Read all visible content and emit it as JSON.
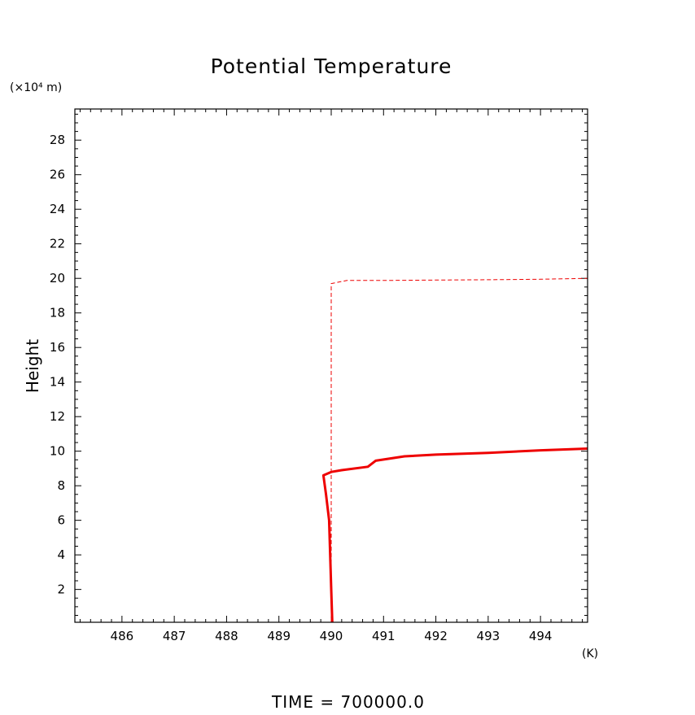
{
  "chart_data": {
    "type": "line",
    "title": "Potential Temperature",
    "ylabel": "Height",
    "y_unit_label": "(×10⁴ m)",
    "x_unit_label": "(K)",
    "footer": "TIME = 700000.0",
    "xlim": [
      485.1,
      494.9
    ],
    "ylim": [
      0.1,
      29.8
    ],
    "x_ticks": [
      486,
      487,
      488,
      489,
      490,
      491,
      492,
      493,
      494
    ],
    "y_ticks": [
      2,
      4,
      6,
      8,
      10,
      12,
      14,
      16,
      18,
      20,
      22,
      24,
      26,
      28
    ],
    "grid": false,
    "series": [
      {
        "style": "solid",
        "color": "#ee0000",
        "points": [
          [
            490.02,
            0.1
          ],
          [
            490.0,
            2.0
          ],
          [
            489.98,
            4.0
          ],
          [
            489.96,
            6.0
          ],
          [
            489.9,
            7.5
          ],
          [
            489.85,
            8.6
          ],
          [
            490.0,
            8.8
          ],
          [
            490.2,
            8.9
          ],
          [
            490.7,
            9.1
          ],
          [
            490.85,
            9.45
          ],
          [
            491.4,
            9.7
          ],
          [
            492.0,
            9.8
          ],
          [
            493.0,
            9.9
          ],
          [
            494.0,
            10.05
          ],
          [
            494.9,
            10.15
          ]
        ]
      },
      {
        "style": "dashed",
        "color": "#ee0000",
        "points": [
          [
            490.0,
            0.1
          ],
          [
            490.0,
            19.7
          ],
          [
            490.3,
            19.88
          ],
          [
            491.0,
            19.88
          ],
          [
            492.0,
            19.9
          ],
          [
            493.0,
            19.92
          ],
          [
            494.0,
            19.95
          ],
          [
            494.9,
            20.0
          ]
        ]
      }
    ]
  }
}
